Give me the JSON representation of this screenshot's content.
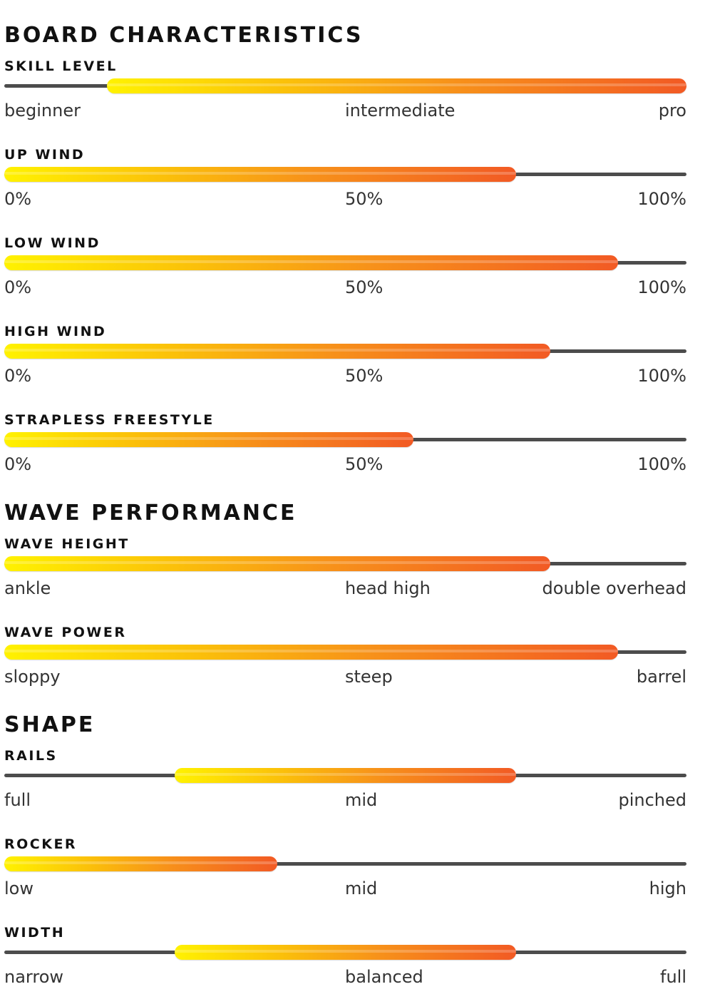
{
  "sections": [
    {
      "title": "BOARD CHARACTERISTICS",
      "metrics": [
        {
          "label": "SKILL LEVEL",
          "range": [
            0.15,
            1.0
          ],
          "scale": [
            "beginner",
            "intermediate",
            "pro"
          ]
        },
        {
          "label": "UP WIND",
          "range": [
            0.0,
            0.75
          ],
          "scale": [
            "0%",
            "50%",
            "100%"
          ]
        },
        {
          "label": "LOW WIND",
          "range": [
            0.0,
            0.9
          ],
          "scale": [
            "0%",
            "50%",
            "100%"
          ]
        },
        {
          "label": "HIGH WIND",
          "range": [
            0.0,
            0.8
          ],
          "scale": [
            "0%",
            "50%",
            "100%"
          ]
        },
        {
          "label": "STRAPLESS FREESTYLE",
          "range": [
            0.0,
            0.6
          ],
          "scale": [
            "0%",
            "50%",
            "100%"
          ]
        }
      ]
    },
    {
      "title": "WAVE PERFORMANCE",
      "metrics": [
        {
          "label": "WAVE HEIGHT",
          "range": [
            0.0,
            0.8
          ],
          "scale": [
            "ankle",
            "head high",
            "double overhead"
          ]
        },
        {
          "label": "WAVE POWER",
          "range": [
            0.0,
            0.9
          ],
          "scale": [
            "sloppy",
            "steep",
            "barrel"
          ]
        }
      ]
    },
    {
      "title": "SHAPE",
      "metrics": [
        {
          "label": "RAILS",
          "range": [
            0.25,
            0.75
          ],
          "scale": [
            "full",
            "mid",
            "pinched"
          ]
        },
        {
          "label": "ROCKER",
          "range": [
            0.0,
            0.4
          ],
          "scale": [
            "low",
            "mid",
            "high"
          ]
        },
        {
          "label": "WIDTH",
          "range": [
            0.25,
            0.75
          ],
          "scale": [
            "narrow",
            "balanced",
            "full"
          ]
        }
      ]
    }
  ],
  "colors": {
    "track": "#4c4c4c",
    "fill_start": "#fff200",
    "fill_end": "#f25a24"
  }
}
